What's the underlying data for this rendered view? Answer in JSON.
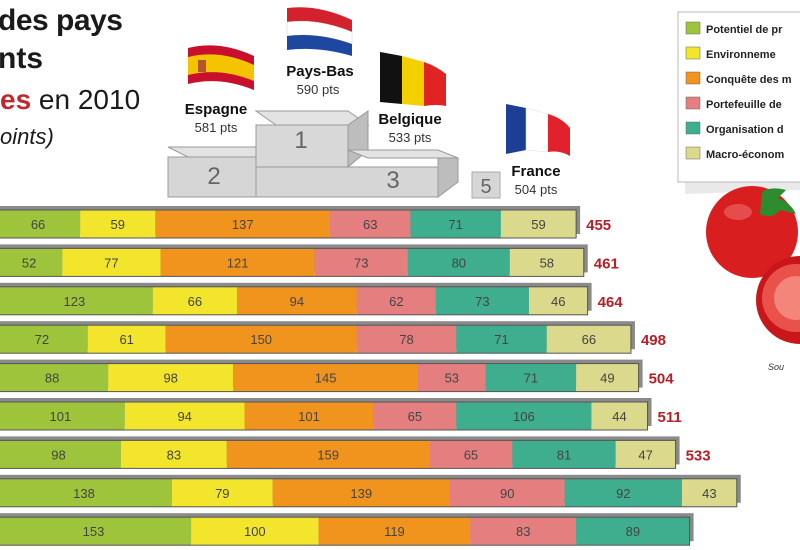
{
  "title": {
    "line1": "des pays",
    "line2": "nts",
    "line3_accent": "es",
    "line3_rest": " en 2010",
    "line4": "oints)"
  },
  "podium": {
    "first": {
      "country": "Pays-Bas",
      "points": "590 pts",
      "rank": "1"
    },
    "second": {
      "country": "Espagne",
      "points": "581 pts",
      "rank": "2"
    },
    "third": {
      "country": "Belgique",
      "points": "533 pts",
      "rank": "3"
    },
    "fifth": {
      "country": "France",
      "points": "504 pts",
      "rank": "5"
    }
  },
  "legend": [
    {
      "label": "Potentiel de pr",
      "color": "#9dc43a"
    },
    {
      "label": "Environneme",
      "color": "#f2e52b"
    },
    {
      "label": "Conquête des m",
      "color": "#f0941e"
    },
    {
      "label": "Portefeuille de",
      "color": "#e57f7f"
    },
    {
      "label": "Organisation d",
      "color": "#3fae8e"
    },
    {
      "label": "Macro-économ",
      "color": "#dbd98b"
    }
  ],
  "source_text": "Sou",
  "chart_data": {
    "type": "bar",
    "orientation": "horizontal",
    "stacked": true,
    "series": [
      {
        "name": "Potentiel de pr",
        "color": "#9dc43a",
        "values": [
          66,
          52,
          123,
          72,
          88,
          101,
          98,
          138,
          153
        ]
      },
      {
        "name": "Environneme",
        "color": "#f2e52b",
        "values": [
          59,
          77,
          66,
          61,
          98,
          94,
          83,
          79,
          100
        ]
      },
      {
        "name": "Conquête des m",
        "color": "#f0941e",
        "values": [
          137,
          121,
          94,
          150,
          145,
          101,
          159,
          139,
          119
        ]
      },
      {
        "name": "Portefeuille de",
        "color": "#e57f7f",
        "values": [
          63,
          73,
          62,
          78,
          53,
          65,
          65,
          90,
          83
        ]
      },
      {
        "name": "Organisation d",
        "color": "#3fae8e",
        "values": [
          71,
          80,
          73,
          71,
          71,
          106,
          81,
          92,
          89
        ]
      },
      {
        "name": "Macro-économ",
        "color": "#dbd98b",
        "values": [
          59,
          58,
          46,
          66,
          49,
          44,
          47,
          43,
          null
        ]
      }
    ],
    "totals": [
      455,
      461,
      464,
      498,
      504,
      511,
      533,
      null,
      null
    ],
    "segment_labels": [
      [
        "66",
        "59",
        "137",
        "63",
        "71",
        "59"
      ],
      [
        "52",
        "77",
        "121",
        "73",
        "80",
        "58"
      ],
      [
        "123",
        "66",
        "94",
        "62",
        "73",
        "46"
      ],
      [
        "72",
        "61",
        "150",
        "78",
        "71",
        "66"
      ],
      [
        "88",
        "98",
        "145",
        "53",
        "71",
        "49"
      ],
      [
        "101",
        "94",
        "101",
        "65",
        "106",
        "44"
      ],
      [
        "98",
        "83",
        "159",
        "65",
        "81",
        "47"
      ],
      [
        "138",
        "79",
        "139",
        "90",
        "92",
        "43"
      ],
      [
        "153",
        "100",
        "119",
        "83",
        "89",
        ""
      ]
    ],
    "total_labels": [
      "455",
      "461",
      "464",
      "498",
      "504",
      "511",
      "533",
      "",
      ""
    ]
  }
}
